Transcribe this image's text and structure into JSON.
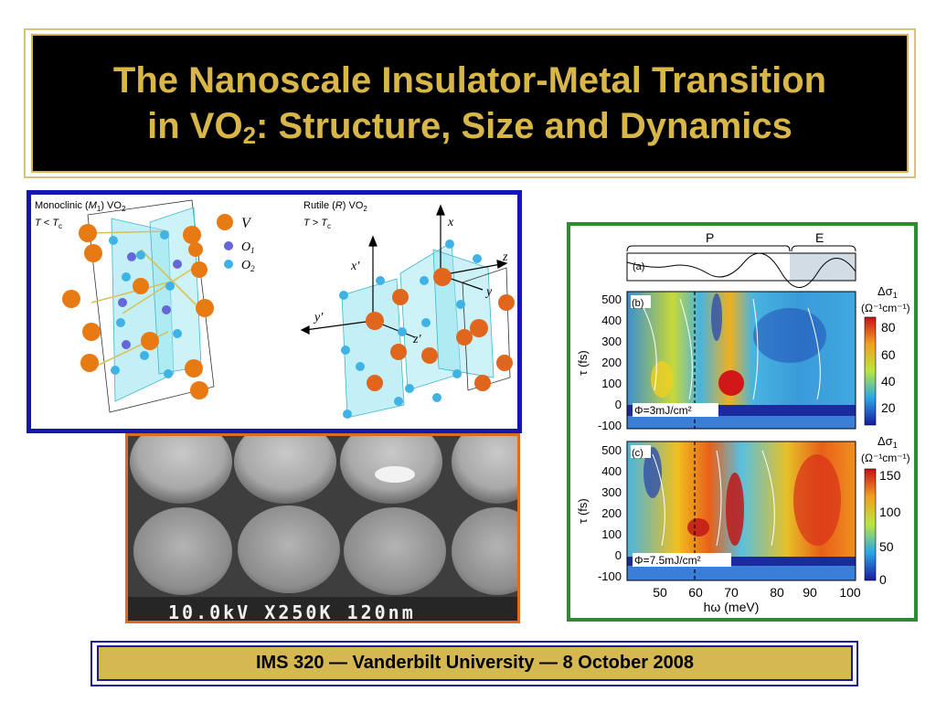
{
  "title": {
    "line1": "The Nanoscale Insulator-Metal Transition",
    "line2_pre": "in VO",
    "line2_sub": "2",
    "line2_post": ": Structure, Size and Dynamics"
  },
  "crystal": {
    "monoclinic_label_pre": "Monoclinic (",
    "monoclinic_label_m": "M",
    "monoclinic_label_sub": "1",
    "monoclinic_label_post": ") VO",
    "monoclinic_label_vo_sub": "2",
    "monoclinic_cond_a": "T",
    "monoclinic_cond_op": " < ",
    "monoclinic_cond_b": "T",
    "monoclinic_cond_sub": "c",
    "rutile_label_pre": "Rutile (",
    "rutile_label_r": "R",
    "rutile_label_post": ") VO",
    "rutile_label_vo_sub": "2",
    "rutile_cond_a": "T",
    "rutile_cond_op": " > ",
    "rutile_cond_b": "T",
    "rutile_cond_sub": "c",
    "legend_v": "V",
    "legend_o1": "O",
    "legend_o1_sub": "1",
    "legend_o2": "O",
    "legend_o2_sub": "2",
    "axis_x": "x",
    "axis_xp": "x′",
    "axis_y": "y",
    "axis_yp": "y′",
    "axis_z": "z",
    "axis_zp": "z′"
  },
  "sem": {
    "caption": "10.0kV  X250K  120nm"
  },
  "figure": {
    "bracket_p": "P",
    "bracket_e": "E",
    "panel_a": "(a)",
    "panel_b": "(b)",
    "panel_c": "(c)",
    "ylabel": "τ (fs)",
    "xlabel": "hω (meV)",
    "fluence_b": "Φ=3mJ/cm²",
    "fluence_c": "Φ=7.5mJ/cm²",
    "cbar_label": "Δσ",
    "cbar_label_sub": "1",
    "cbar_unit": "(Ω⁻¹cm⁻¹)",
    "y_ticks": [
      "500",
      "400",
      "300",
      "200",
      "100",
      "0",
      "-100"
    ],
    "x_ticks": [
      "50",
      "60",
      "70",
      "80",
      "90",
      "100"
    ],
    "cbar_b_ticks": [
      "80",
      "60",
      "40",
      "20"
    ],
    "cbar_c_ticks": [
      "150",
      "100",
      "50",
      "0"
    ]
  },
  "footer": {
    "text": "IMS 320 — Vanderbilt University — 8 October 2008"
  },
  "colors": {
    "title_gold": "#d8b648",
    "footer_gold": "#d6b852",
    "crystal_border": "#1515b4",
    "figure_border": "#2e8b2e",
    "sem_border": "#e06a20"
  }
}
